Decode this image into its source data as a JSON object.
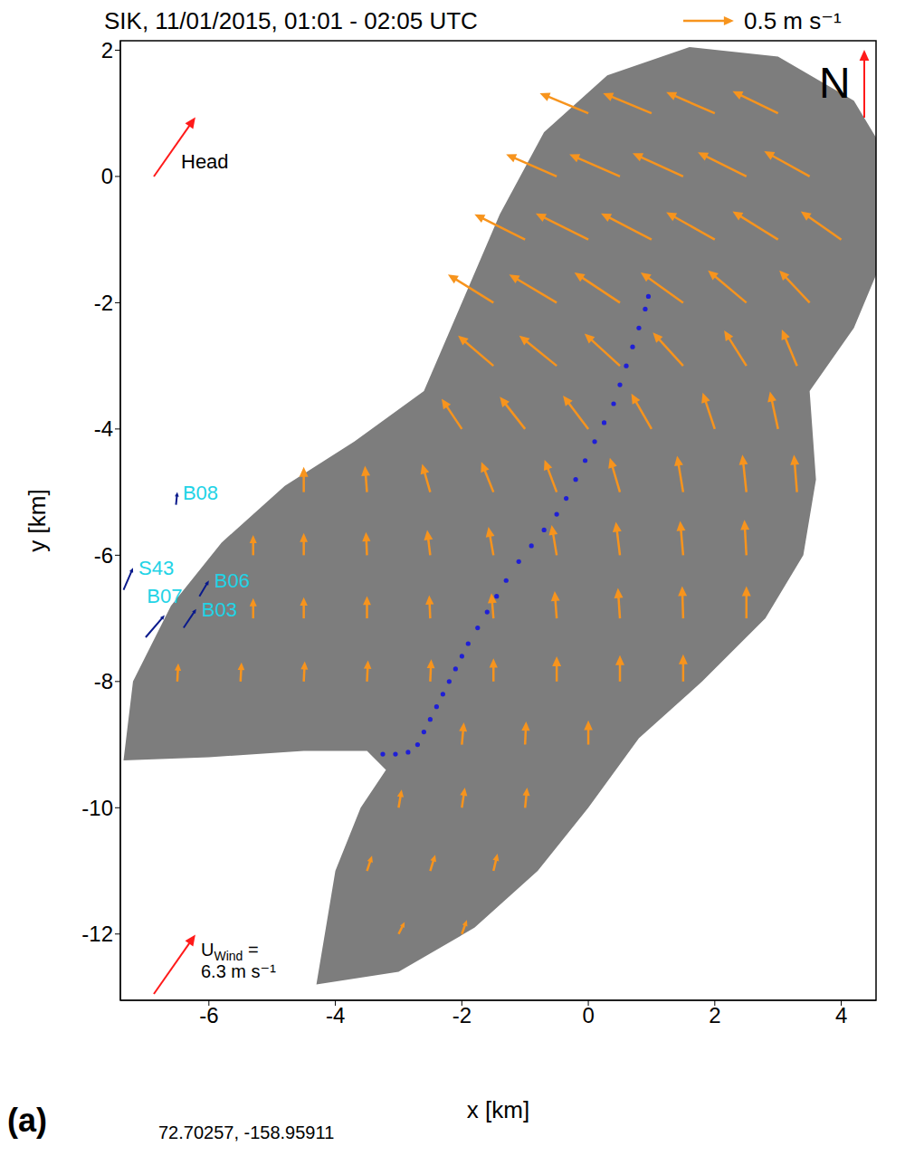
{
  "chart_data": {
    "type": "quiver",
    "title": "SIK, 11/01/2015, 01:01 - 02:05 UTC",
    "x_label": "x [km]",
    "y_label": "y [km]",
    "xlim": [
      -7.4,
      4.55
    ],
    "ylim": [
      -13.05,
      2.15
    ],
    "xticks": [
      -6,
      -4,
      -2,
      0,
      2,
      4
    ],
    "yticks": [
      2,
      0,
      -2,
      -4,
      -6,
      -8,
      -10,
      -12
    ],
    "reference_arrow": {
      "value": 0.5,
      "label": "0.5 m s⁻¹",
      "color": "#f7941d"
    },
    "vectors": {
      "color": "#f7941d",
      "points": [
        [
          0,
          1,
          -0.48,
          0.2
        ],
        [
          1,
          1,
          -0.48,
          0.2
        ],
        [
          2,
          1,
          -0.48,
          0.21
        ],
        [
          3,
          1,
          -0.45,
          0.22
        ],
        [
          -0.5,
          0,
          -0.5,
          0.22
        ],
        [
          0.5,
          0,
          -0.5,
          0.22
        ],
        [
          1.5,
          0,
          -0.5,
          0.23
        ],
        [
          2.5,
          0,
          -0.48,
          0.24
        ],
        [
          3.5,
          0,
          -0.45,
          0.25
        ],
        [
          -1,
          -1,
          -0.5,
          0.25
        ],
        [
          0,
          -1,
          -0.52,
          0.26
        ],
        [
          1,
          -1,
          -0.5,
          0.26
        ],
        [
          2,
          -1,
          -0.48,
          0.27
        ],
        [
          3,
          -1,
          -0.45,
          0.28
        ],
        [
          4,
          -1,
          -0.4,
          0.28
        ],
        [
          -1.5,
          -2,
          -0.45,
          0.28
        ],
        [
          -0.5,
          -2,
          -0.47,
          0.28
        ],
        [
          0.5,
          -2,
          -0.45,
          0.3
        ],
        [
          1.5,
          -2,
          -0.42,
          0.3
        ],
        [
          2.5,
          -2,
          -0.38,
          0.32
        ],
        [
          3.5,
          -2,
          -0.3,
          0.32
        ],
        [
          -1.5,
          -3,
          -0.35,
          0.3
        ],
        [
          -0.5,
          -3,
          -0.37,
          0.3
        ],
        [
          0.5,
          -3,
          -0.35,
          0.32
        ],
        [
          1.5,
          -3,
          -0.3,
          0.33
        ],
        [
          2.5,
          -3,
          -0.22,
          0.35
        ],
        [
          3.3,
          -3,
          -0.15,
          0.36
        ],
        [
          -2,
          -4,
          -0.2,
          0.3
        ],
        [
          -1,
          -4,
          -0.25,
          0.32
        ],
        [
          0,
          -4,
          -0.25,
          0.33
        ],
        [
          1,
          -4,
          -0.2,
          0.35
        ],
        [
          2,
          -4,
          -0.12,
          0.36
        ],
        [
          3,
          -4,
          -0.08,
          0.37
        ],
        [
          -4.5,
          -5,
          0,
          0.25
        ],
        [
          -3.5,
          -5,
          -0.02,
          0.26
        ],
        [
          -2.5,
          -5,
          -0.08,
          0.28
        ],
        [
          -1.5,
          -5,
          -0.12,
          0.3
        ],
        [
          -0.5,
          -5,
          -0.12,
          0.32
        ],
        [
          0.5,
          -5,
          -0.1,
          0.34
        ],
        [
          1.5,
          -5,
          -0.06,
          0.36
        ],
        [
          2.5,
          -5,
          -0.04,
          0.37
        ],
        [
          3.3,
          -5,
          -0.03,
          0.37
        ],
        [
          -5.3,
          -6,
          0,
          0.2
        ],
        [
          -4.5,
          -6,
          0,
          0.22
        ],
        [
          -3.5,
          -6,
          -0.01,
          0.23
        ],
        [
          -2.5,
          -6,
          -0.03,
          0.25
        ],
        [
          -1.5,
          -6,
          -0.05,
          0.28
        ],
        [
          -0.5,
          -6,
          -0.05,
          0.3
        ],
        [
          0.5,
          -6,
          -0.04,
          0.33
        ],
        [
          1.5,
          -6,
          -0.03,
          0.34
        ],
        [
          2.5,
          -6,
          -0.02,
          0.35
        ],
        [
          -5.3,
          -7,
          0,
          0.2
        ],
        [
          -4.5,
          -7,
          0,
          0.21
        ],
        [
          -3.5,
          -7,
          0,
          0.22
        ],
        [
          -2.5,
          -7,
          -0.01,
          0.23
        ],
        [
          -1.5,
          -7,
          -0.02,
          0.25
        ],
        [
          -0.5,
          -7,
          -0.02,
          0.27
        ],
        [
          0.5,
          -7,
          -0.02,
          0.3
        ],
        [
          1.5,
          -7,
          -0.01,
          0.32
        ],
        [
          2.5,
          -7,
          0,
          0.32
        ],
        [
          -6.5,
          -8,
          0.01,
          0.18
        ],
        [
          -5.5,
          -8,
          0.01,
          0.19
        ],
        [
          -4.5,
          -8,
          0.01,
          0.2
        ],
        [
          -3.5,
          -8,
          0.01,
          0.21
        ],
        [
          -2.5,
          -8,
          0.01,
          0.22
        ],
        [
          -1.5,
          -8,
          0,
          0.23
        ],
        [
          -0.5,
          -8,
          0,
          0.25
        ],
        [
          0.5,
          -8,
          0,
          0.26
        ],
        [
          1.5,
          -8,
          0,
          0.27
        ],
        [
          -2,
          -9,
          0.02,
          0.22
        ],
        [
          -1,
          -9,
          0.01,
          0.23
        ],
        [
          0,
          -9,
          0,
          0.24
        ],
        [
          -3,
          -10,
          0.03,
          0.18
        ],
        [
          -2,
          -10,
          0.03,
          0.2
        ],
        [
          -1,
          -10,
          0.02,
          0.2
        ],
        [
          -3.5,
          -11,
          0.05,
          0.15
        ],
        [
          -2.5,
          -11,
          0.05,
          0.16
        ],
        [
          -1.5,
          -11,
          0.04,
          0.17
        ],
        [
          -3,
          -12,
          0.06,
          0.12
        ],
        [
          -2,
          -12,
          0.05,
          0.14
        ]
      ]
    },
    "track": {
      "color": "#1f1fd6",
      "marker": "circle",
      "line_style": "dotted",
      "x": [
        -3.25,
        -3.05,
        -2.85,
        -2.7,
        -2.6,
        -2.5,
        -2.4,
        -2.3,
        -2.2,
        -2.1,
        -2.0,
        -1.9,
        -1.75,
        -1.6,
        -1.45,
        -1.3,
        -1.1,
        -0.9,
        -0.7,
        -0.5,
        -0.35,
        -0.2,
        -0.05,
        0.1,
        0.25,
        0.4,
        0.5,
        0.6,
        0.7,
        0.8,
        0.9,
        0.95
      ],
      "y": [
        -9.15,
        -9.15,
        -9.12,
        -9.0,
        -8.8,
        -8.6,
        -8.4,
        -8.2,
        -8.0,
        -7.8,
        -7.6,
        -7.4,
        -7.15,
        -6.9,
        -6.65,
        -6.4,
        -6.1,
        -5.85,
        -5.6,
        -5.35,
        -5.1,
        -4.8,
        -4.5,
        -4.2,
        -3.9,
        -3.6,
        -3.3,
        -3.0,
        -2.7,
        -2.4,
        -2.1,
        -1.9
      ]
    },
    "stations": {
      "color": "#22d3e6",
      "track_color": "#0a1a8c",
      "items": [
        {
          "name": "B08",
          "x": -6.5,
          "y": -5.0,
          "dx": 0.02,
          "dy": 0.2
        },
        {
          "name": "S43",
          "x": -7.2,
          "y": -6.2,
          "dx": 0.15,
          "dy": 0.35
        },
        {
          "name": "B06",
          "x": -6.0,
          "y": -6.4,
          "dx": 0.15,
          "dy": 0.25
        },
        {
          "name": "B03",
          "x": -6.2,
          "y": -6.85,
          "dx": 0.2,
          "dy": 0.3
        },
        {
          "name": "B07",
          "x": -6.7,
          "y": -6.95,
          "dx": 0.3,
          "dy": 0.35
        }
      ]
    },
    "coverage": {
      "color": "#7d7d7d",
      "outline": [
        [
          -7.35,
          -9.25
        ],
        [
          -7.2,
          -8.0
        ],
        [
          -6.6,
          -6.8
        ],
        [
          -5.8,
          -5.8
        ],
        [
          -4.8,
          -4.9
        ],
        [
          -3.7,
          -4.2
        ],
        [
          -2.6,
          -3.4
        ],
        [
          -2.0,
          -2.0
        ],
        [
          -1.4,
          -0.6
        ],
        [
          -0.7,
          0.7
        ],
        [
          0.3,
          1.6
        ],
        [
          1.6,
          2.05
        ],
        [
          3.0,
          1.9
        ],
        [
          4.2,
          1.2
        ],
        [
          4.8,
          0.2
        ],
        [
          4.7,
          -1.2
        ],
        [
          4.2,
          -2.4
        ],
        [
          3.5,
          -3.4
        ],
        [
          3.6,
          -4.8
        ],
        [
          3.4,
          -6.0
        ],
        [
          2.8,
          -7.0
        ],
        [
          1.8,
          -8.0
        ],
        [
          0.8,
          -8.9
        ],
        [
          0.0,
          -10.0
        ],
        [
          -0.8,
          -11.0
        ],
        [
          -1.8,
          -11.9
        ],
        [
          -3.0,
          -12.6
        ],
        [
          -4.3,
          -12.8
        ],
        [
          -4.0,
          -11.0
        ],
        [
          -3.6,
          -10.0
        ],
        [
          -3.2,
          -9.4
        ],
        [
          -3.5,
          -9.1
        ],
        [
          -4.5,
          -9.1
        ],
        [
          -6.0,
          -9.2
        ]
      ]
    },
    "annotations": {
      "heading": {
        "label": "Head",
        "direction_deg": 35,
        "color": "#ff1a1a"
      },
      "wind": {
        "symbol": "U",
        "subscript": "Wind",
        "text": "= 6.3 m s⁻¹",
        "direction_deg": 35,
        "color": "#ff1a1a"
      },
      "north": {
        "label": "N",
        "color": "#ff1a1a"
      },
      "panel": "(a)",
      "origin": "72.70257, -158.95911"
    }
  }
}
